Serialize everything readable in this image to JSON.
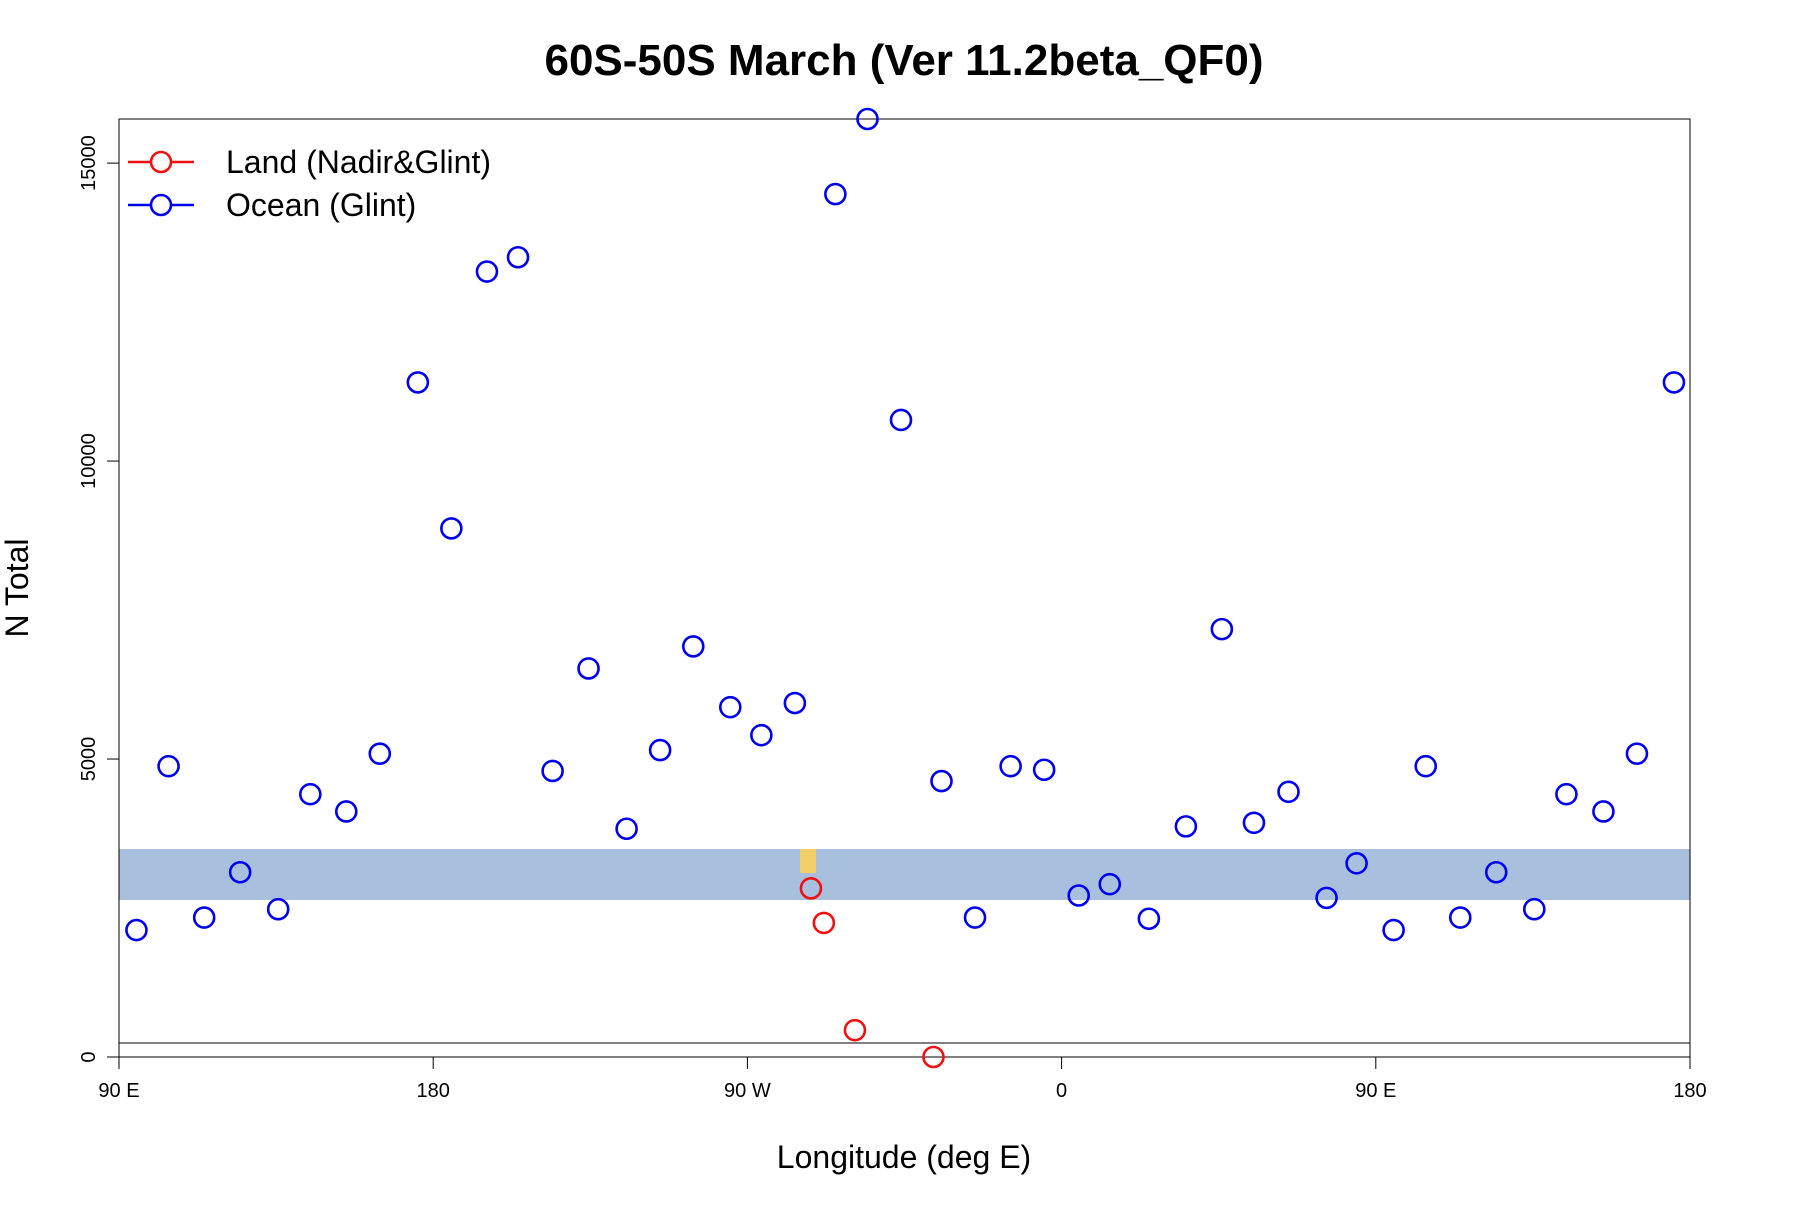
{
  "chart_data": {
    "type": "scatter",
    "title": "60S-50S March (Ver 11.2beta_QF0)",
    "x_label": "Longitude (deg E)",
    "y_label": "N Total",
    "xlim": [
      90,
      540
    ],
    "xticks": [
      {
        "value": 90,
        "label": "90 E"
      },
      180,
      {
        "value": 270,
        "label": "90 W"
      },
      {
        "value": 360,
        "label": "0"
      },
      {
        "value": 450,
        "label": "90 E"
      },
      {
        "value": 540,
        "label": "180"
      }
    ],
    "ylim": [
      0,
      15740
    ],
    "yticks": [
      0,
      5000,
      10000,
      15000
    ],
    "legend": "top-left",
    "series": [
      {
        "name": "Land (Nadir&Glint)",
        "color": "#ee1111",
        "x": [
          288.2,
          291.9,
          300.8,
          323.3
        ],
        "values": [
          2830,
          2250,
          450,
          0
        ]
      },
      {
        "name": "Ocean (Glint)",
        "color": "#0000ee",
        "x": [
          95.0,
          104.2,
          114.4,
          124.7,
          135.6,
          144.8,
          155.1,
          164.7,
          175.6,
          185.2,
          195.4,
          204.3,
          214.2,
          224.5,
          235.4,
          245.0,
          254.5,
          265.1,
          274.0,
          283.6,
          295.2,
          304.4,
          314.0,
          325.6,
          335.2,
          345.4,
          355.0,
          364.9,
          373.8,
          385.0,
          395.6,
          405.9,
          415.1,
          425.0,
          435.9,
          444.5,
          455.1,
          464.3,
          474.2,
          484.5,
          495.4,
          504.6,
          515.2,
          524.8,
          535.4
        ],
        "values": [
          2130,
          4880,
          2340,
          3100,
          2480,
          4410,
          4120,
          5090,
          11320,
          8870,
          13180,
          13420,
          4800,
          6520,
          3830,
          5150,
          6890,
          5870,
          5400,
          5940,
          14480,
          15740,
          10690,
          4630,
          2340,
          4880,
          4820,
          2710,
          2900,
          2320,
          3870,
          7180,
          3930,
          4450,
          2670,
          3250,
          2130,
          4880,
          2340,
          3100,
          2480,
          4410,
          4120,
          5090,
          11320
        ]
      }
    ]
  }
}
